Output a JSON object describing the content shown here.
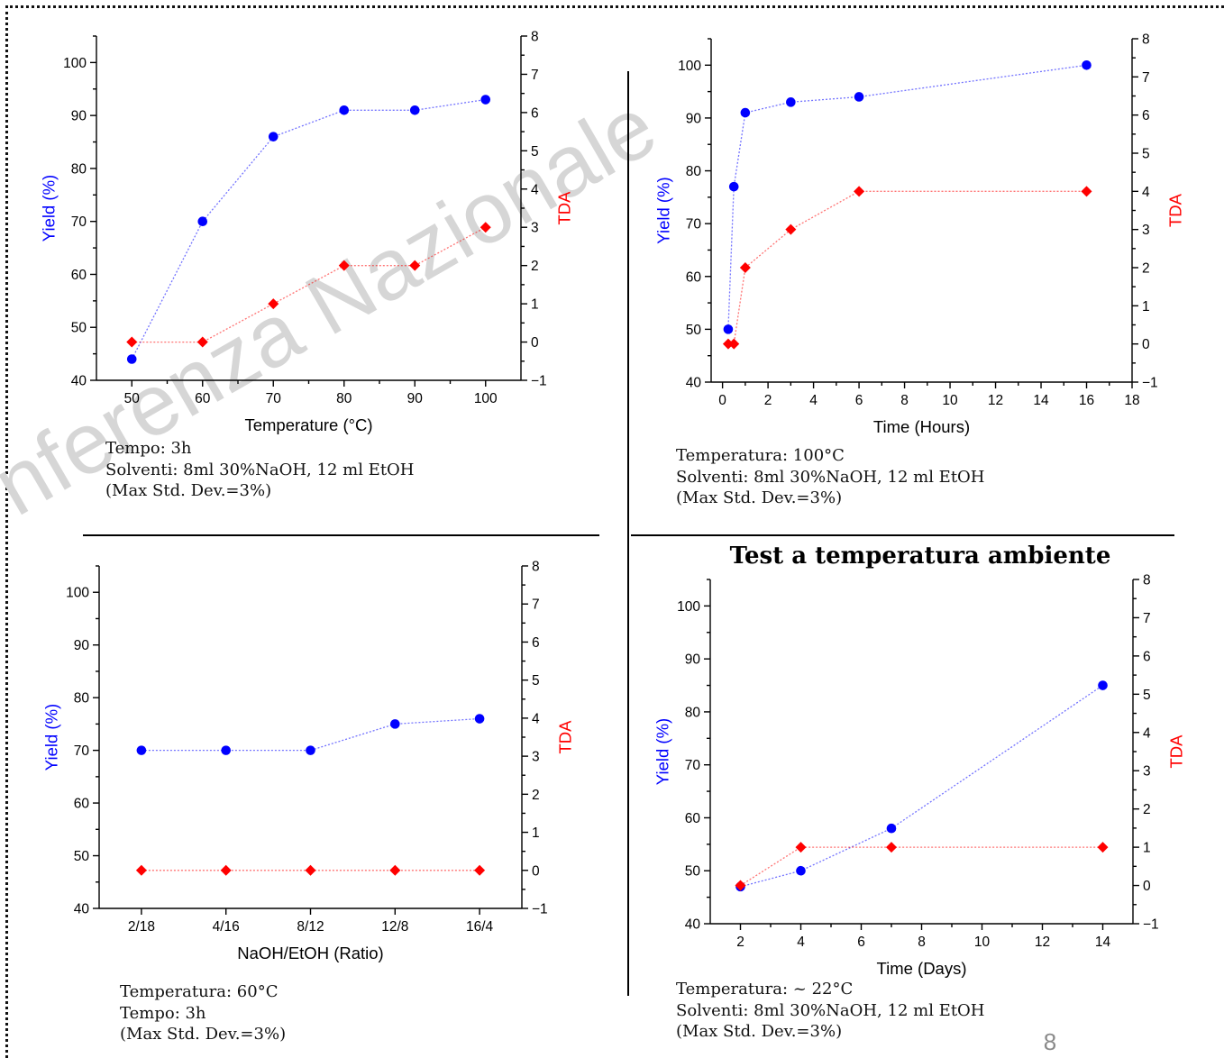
{
  "watermark": "nferenza Nazionale",
  "page_number": "8",
  "chart_data": [
    {
      "type": "line",
      "xlabel": "Temperature (°C)",
      "ylabel": "Yield (%)",
      "y2label": "TDA",
      "x": [
        50,
        60,
        70,
        80,
        90,
        100
      ],
      "xlim": [
        45,
        105
      ],
      "xticks": [
        50,
        60,
        70,
        80,
        90,
        100
      ],
      "ylim": [
        40,
        105
      ],
      "yticks": [
        40,
        50,
        60,
        70,
        80,
        90,
        100
      ],
      "y2lim": [
        -1,
        8
      ],
      "y2ticks": [
        -1,
        0,
        1,
        2,
        3,
        4,
        5,
        6,
        7,
        8
      ],
      "grid": false,
      "series": [
        {
          "axis": "left",
          "marker": "circle",
          "color": "#0000ff",
          "values": [
            44,
            70,
            86,
            91,
            91,
            93
          ]
        },
        {
          "axis": "right",
          "marker": "diamond",
          "color": "#ff0000",
          "values": [
            0,
            0,
            1,
            2,
            2,
            3
          ]
        }
      ],
      "notes": [
        "Tempo: 3h",
        "Solventi: 8ml 30%NaOH, 12 ml EtOH",
        "(Max Std. Dev.=3%)"
      ]
    },
    {
      "type": "line",
      "xlabel": "Time (Hours)",
      "ylabel": "Yield (%)",
      "y2label": "TDA",
      "x": [
        0.25,
        0.5,
        1,
        3,
        6,
        16
      ],
      "xlim": [
        -0.5,
        18
      ],
      "xticks": [
        0,
        2,
        4,
        6,
        8,
        10,
        12,
        14,
        16,
        18
      ],
      "ylim": [
        40,
        105
      ],
      "yticks": [
        40,
        50,
        60,
        70,
        80,
        90,
        100
      ],
      "y2lim": [
        -1,
        8
      ],
      "y2ticks": [
        -1,
        0,
        1,
        2,
        3,
        4,
        5,
        6,
        7,
        8
      ],
      "grid": false,
      "series": [
        {
          "axis": "left",
          "marker": "circle",
          "color": "#0000ff",
          "values": [
            50,
            77,
            91,
            93,
            94,
            100
          ]
        },
        {
          "axis": "right",
          "marker": "diamond",
          "color": "#ff0000",
          "values": [
            0,
            0,
            2,
            3,
            4,
            4
          ]
        }
      ],
      "notes": [
        "Temperatura: 100°C",
        "Solventi: 8ml 30%NaOH, 12 ml EtOH",
        "(Max Std. Dev.=3%)"
      ]
    },
    {
      "type": "line",
      "xlabel": "NaOH/EtOH (Ratio)",
      "ylabel": "Yield (%)",
      "y2label": "TDA",
      "categories": [
        "2/18",
        "4/16",
        "8/12",
        "12/8",
        "16/4"
      ],
      "ylim": [
        40,
        105
      ],
      "yticks": [
        40,
        50,
        60,
        70,
        80,
        90,
        100
      ],
      "y2lim": [
        -1,
        8
      ],
      "y2ticks": [
        -1,
        0,
        1,
        2,
        3,
        4,
        5,
        6,
        7,
        8
      ],
      "grid": false,
      "series": [
        {
          "axis": "left",
          "marker": "circle",
          "color": "#0000ff",
          "values": [
            70,
            70,
            70,
            75,
            76
          ]
        },
        {
          "axis": "right",
          "marker": "diamond",
          "color": "#ff0000",
          "values": [
            0,
            0,
            0,
            0,
            0
          ]
        }
      ],
      "notes": [
        "Temperatura: 60°C",
        "Tempo: 3h",
        "(Max Std. Dev.=3%)"
      ]
    },
    {
      "type": "line",
      "title": "Test a temperatura ambiente",
      "xlabel": "Time (Days)",
      "ylabel": "Yield (%)",
      "y2label": "TDA",
      "x": [
        2,
        4,
        7,
        14
      ],
      "xlim": [
        1,
        15
      ],
      "xticks": [
        2,
        4,
        6,
        8,
        10,
        12,
        14
      ],
      "ylim": [
        40,
        105
      ],
      "yticks": [
        40,
        50,
        60,
        70,
        80,
        90,
        100
      ],
      "y2lim": [
        -1,
        8
      ],
      "y2ticks": [
        -1,
        0,
        1,
        2,
        3,
        4,
        5,
        6,
        7,
        8
      ],
      "grid": false,
      "series": [
        {
          "axis": "left",
          "marker": "circle",
          "color": "#0000ff",
          "values": [
            47,
            50,
            58,
            85
          ]
        },
        {
          "axis": "right",
          "marker": "diamond",
          "color": "#ff0000",
          "values": [
            0,
            1,
            1,
            1
          ]
        }
      ],
      "notes": [
        "Temperatura: ~ 22°C",
        "Solventi: 8ml 30%NaOH, 12 ml EtOH",
        "(Max Std. Dev.=3%)"
      ]
    }
  ]
}
